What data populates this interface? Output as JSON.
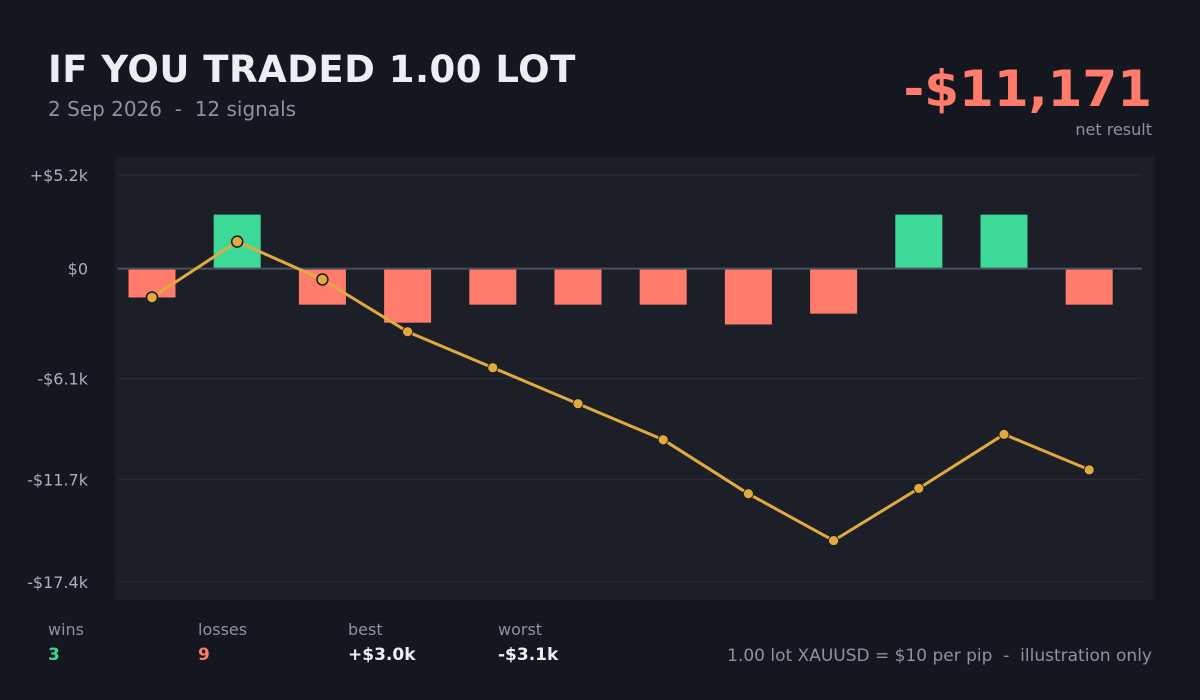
{
  "header": {
    "title": "IF YOU TRADED 1.00 LOT",
    "date": "2 Sep 2026",
    "signals": "12 signals"
  },
  "net": {
    "value": "-$11,171",
    "label": "net result"
  },
  "colors": {
    "win": "#3dd999",
    "loss": "#ff7b6b",
    "line": "#e0aa3e",
    "plot_bg": "#1c1f28",
    "page_bg": "#14171f"
  },
  "chart_data": {
    "type": "bar",
    "title": "",
    "xlabel": "",
    "ylabel": "",
    "ylim": [
      -17400,
      5200
    ],
    "y_ticks": [
      {
        "value": 5200,
        "label": "+$5.2k"
      },
      {
        "value": 0,
        "label": "$0"
      },
      {
        "value": -6100,
        "label": "-$6.1k"
      },
      {
        "value": -11700,
        "label": "-$11.7k"
      },
      {
        "value": -17400,
        "label": "-$17.4k"
      }
    ],
    "grid": true,
    "series": [
      {
        "type": "bar",
        "values": [
          -1600,
          3000,
          -2000,
          -3000,
          -2000,
          -2000,
          -2000,
          -3100,
          -2500,
          3000,
          3000,
          -2000
        ]
      },
      {
        "type": "line",
        "values": [
          -1600,
          1500,
          -600,
          -3500,
          -5500,
          -7500,
          -9500,
          -12500,
          -15100,
          -12200,
          -9200,
          -11171
        ]
      }
    ]
  },
  "stats": [
    {
      "label": "wins",
      "value": "3",
      "tone": "win"
    },
    {
      "label": "losses",
      "value": "9",
      "tone": "loss"
    },
    {
      "label": "best",
      "value": "+$3.0k",
      "tone": "neutral"
    },
    {
      "label": "worst",
      "value": "-$3.1k",
      "tone": "neutral"
    }
  ],
  "footer": {
    "note": "1.00 lot XAUUSD = $10 per pip  -  illustration only"
  }
}
